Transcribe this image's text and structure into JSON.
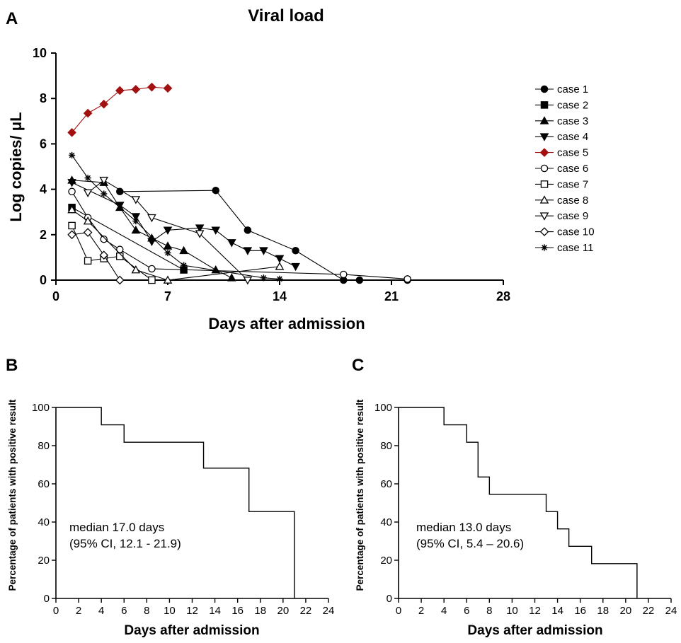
{
  "chart_data": [
    {
      "panel": "A",
      "type": "line",
      "title": "Viral load",
      "xlabel": "Days after admission",
      "ylabel": "Log copies/ μL",
      "xlim": [
        0,
        28
      ],
      "ylim": [
        0,
        10
      ],
      "xticks": [
        0,
        7,
        14,
        21,
        28
      ],
      "yticks": [
        0,
        2,
        4,
        6,
        8,
        10
      ],
      "grid": false,
      "legend_position": "right",
      "series": [
        {
          "name": "case 1",
          "marker": "circle-filled",
          "color": "#000000",
          "x": [
            4,
            10,
            12,
            15,
            18,
            19,
            22
          ],
          "y": [
            3.9,
            3.95,
            2.2,
            1.3,
            0,
            0,
            0
          ]
        },
        {
          "name": "case 2",
          "marker": "square-filled",
          "color": "#000000",
          "x": [
            1,
            8
          ],
          "y": [
            3.2,
            0.45
          ]
        },
        {
          "name": "case 3",
          "marker": "triangle-up-filled",
          "color": "#000000",
          "x": [
            1,
            3,
            4,
            5,
            6,
            7,
            8,
            10,
            11
          ],
          "y": [
            4.4,
            4.3,
            3.2,
            2.2,
            1.85,
            1.5,
            1.3,
            0.45,
            0.1
          ]
        },
        {
          "name": "case 4",
          "marker": "triangle-down-filled",
          "color": "#000000",
          "x": [
            1,
            4,
            5,
            6,
            7,
            9,
            10,
            11,
            12,
            13,
            14,
            15
          ],
          "y": [
            4.3,
            3.3,
            2.8,
            1.7,
            2.2,
            2.3,
            2.2,
            1.65,
            1.3,
            1.3,
            0.95,
            0.6
          ]
        },
        {
          "name": "case 5",
          "marker": "diamond-filled",
          "color": "#a31010",
          "x": [
            1,
            2,
            3,
            4,
            5,
            6,
            7
          ],
          "y": [
            6.5,
            7.35,
            7.75,
            8.35,
            8.4,
            8.5,
            8.45
          ]
        },
        {
          "name": "case 6",
          "marker": "circle-open",
          "color": "#000000",
          "x": [
            1,
            2,
            3,
            4,
            6,
            18,
            22
          ],
          "y": [
            3.9,
            2.75,
            1.8,
            1.35,
            0.5,
            0.25,
            0.05
          ]
        },
        {
          "name": "case 7",
          "marker": "square-open",
          "color": "#000000",
          "x": [
            1,
            2,
            3,
            4,
            6
          ],
          "y": [
            2.4,
            0.85,
            0.95,
            1.05,
            0
          ]
        },
        {
          "name": "case 8",
          "marker": "triangle-up-open",
          "color": "#000000",
          "x": [
            1,
            2,
            5,
            7,
            14
          ],
          "y": [
            3.1,
            2.6,
            0.45,
            0,
            0.6
          ]
        },
        {
          "name": "case 9",
          "marker": "triangle-down-open",
          "color": "#000000",
          "x": [
            2,
            3,
            5,
            6,
            9,
            12
          ],
          "y": [
            3.85,
            4.4,
            3.55,
            2.75,
            2.05,
            0
          ]
        },
        {
          "name": "case 10",
          "marker": "diamond-open",
          "color": "#000000",
          "x": [
            1,
            2,
            3,
            4
          ],
          "y": [
            2,
            2.1,
            1.1,
            0
          ]
        },
        {
          "name": "case 11",
          "marker": "star",
          "color": "#000000",
          "x": [
            1,
            2,
            3,
            5,
            7,
            8,
            13,
            14
          ],
          "y": [
            5.5,
            4.5,
            3.8,
            2.6,
            1.2,
            0.65,
            0.1,
            0.05
          ]
        }
      ]
    },
    {
      "panel": "B",
      "type": "line",
      "subtype": "step",
      "xlabel": "Days after admission",
      "ylabel": "Percentage of patients with positive result",
      "xlim": [
        0,
        24
      ],
      "ylim": [
        0,
        100
      ],
      "xticks": [
        0,
        2,
        4,
        6,
        8,
        10,
        12,
        14,
        16,
        18,
        20,
        22,
        24
      ],
      "yticks": [
        0,
        20,
        40,
        60,
        80,
        100
      ],
      "annotation_lines": [
        "median 17.0 days",
        "(95% CI, 12.1 - 21.9)"
      ],
      "steps": {
        "x": [
          0,
          4,
          6,
          13,
          17,
          21
        ],
        "y": [
          100,
          90.9,
          81.8,
          68.2,
          45.5,
          0
        ]
      }
    },
    {
      "panel": "C",
      "type": "line",
      "subtype": "step",
      "xlabel": "Days after admission",
      "ylabel": "Percentage of patients with positive result",
      "xlim": [
        0,
        24
      ],
      "ylim": [
        0,
        100
      ],
      "xticks": [
        0,
        2,
        4,
        6,
        8,
        10,
        12,
        14,
        16,
        18,
        20,
        22,
        24
      ],
      "yticks": [
        0,
        20,
        40,
        60,
        80,
        100
      ],
      "annotation_lines": [
        "median 13.0 days",
        "(95% CI, 5.4 – 20.6)"
      ],
      "steps": {
        "x": [
          0,
          4,
          6,
          7,
          8,
          13,
          14,
          15,
          17,
          21
        ],
        "y": [
          100,
          90.9,
          81.8,
          63.6,
          54.5,
          45.5,
          36.4,
          27.3,
          18.2,
          0
        ]
      }
    }
  ]
}
